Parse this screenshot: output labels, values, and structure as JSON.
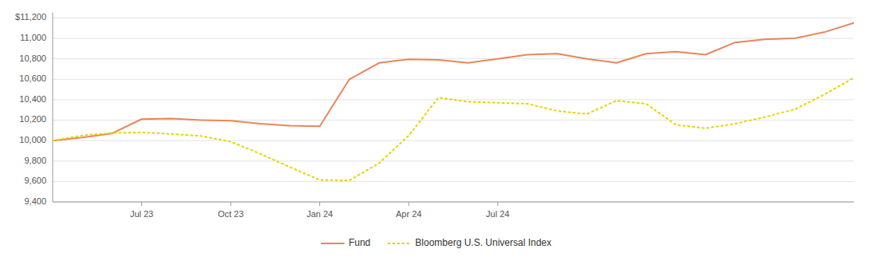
{
  "chart_data": {
    "type": "line",
    "categories": [
      null,
      null,
      null,
      "Jul 23",
      null,
      null,
      "Oct 23",
      null,
      null,
      "Jan 24",
      null,
      null,
      "Apr 24",
      null,
      null,
      "Jul 24",
      null,
      null,
      null,
      null,
      null,
      null,
      null,
      null,
      null,
      null,
      null,
      null
    ],
    "series": [
      {
        "name": "Fund",
        "color": "#E8875A",
        "line_style": "solid",
        "values": [
          10000,
          10030,
          10070,
          10210,
          10215,
          10200,
          10195,
          10165,
          10145,
          10140,
          10600,
          10760,
          10795,
          10790,
          10760,
          10800,
          10840,
          10850,
          10800,
          10760,
          10850,
          10870,
          10840,
          10960,
          10990,
          11000,
          11060,
          11150
        ]
      },
      {
        "name": "Bloomberg U.S. Universal Index",
        "color": "#E8D400",
        "line_style": "dotted",
        "values": [
          10000,
          10050,
          10075,
          10080,
          10065,
          10045,
          9990,
          9870,
          9740,
          9615,
          9610,
          9780,
          10050,
          10420,
          10380,
          10370,
          10360,
          10290,
          10260,
          10390,
          10360,
          10155,
          10120,
          10165,
          10230,
          10305,
          10450,
          10615
        ]
      }
    ],
    "ylim": [
      9400,
      11250
    ],
    "yticks": [
      {
        "value": 9400,
        "label": "9,400"
      },
      {
        "value": 9600,
        "label": "9,600"
      },
      {
        "value": 9800,
        "label": "9,800"
      },
      {
        "value": 10000,
        "label": "10,000"
      },
      {
        "value": 10200,
        "label": "10,200"
      },
      {
        "value": 10400,
        "label": "10,400"
      },
      {
        "value": 10600,
        "label": "10,600"
      },
      {
        "value": 10800,
        "label": "10,800"
      },
      {
        "value": 11000,
        "label": "11,000"
      },
      {
        "value": 11200,
        "label": "$11,200"
      }
    ],
    "grid": true,
    "legend": "bottom"
  }
}
